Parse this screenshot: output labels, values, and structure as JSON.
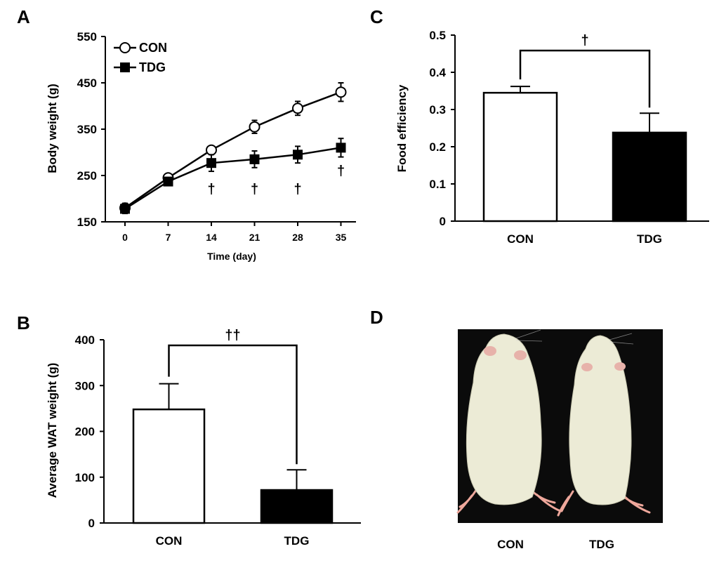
{
  "panels": {
    "A": {
      "letter": "A",
      "chart_data": {
        "type": "line",
        "title": "",
        "xlabel": "Time (day)",
        "ylabel": "Body weight (g)",
        "x": [
          0,
          7,
          14,
          21,
          28,
          35
        ],
        "ylim": [
          150,
          550
        ],
        "yticks": [
          150,
          250,
          350,
          450,
          550
        ],
        "series": [
          {
            "name": "CON",
            "marker": "open-circle",
            "values": [
              180,
              245,
              305,
              355,
              395,
              430
            ],
            "errors": [
              10,
              8,
              8,
              14,
              15,
              20
            ]
          },
          {
            "name": "TDG",
            "marker": "filled-square",
            "values": [
              178,
              237,
              277,
              285,
              295,
              310
            ],
            "errors": [
              10,
              8,
              18,
              18,
              18,
              20
            ]
          }
        ],
        "significance": [
          {
            "x": 14,
            "label": "†"
          },
          {
            "x": 21,
            "label": "†"
          },
          {
            "x": 28,
            "label": "†"
          },
          {
            "x": 35,
            "label": "†"
          }
        ],
        "legend": "top-left"
      }
    },
    "B": {
      "letter": "B",
      "chart_data": {
        "type": "bar",
        "title": "",
        "xlabel": "",
        "ylabel": "Average WAT weight (g)",
        "categories": [
          "CON",
          "TDG"
        ],
        "values": [
          248,
          72
        ],
        "errors": [
          56,
          44
        ],
        "colors": [
          "#ffffff",
          "#000000"
        ],
        "ylim": [
          0,
          400
        ],
        "yticks": [
          0,
          100,
          200,
          300,
          400
        ],
        "significance": {
          "label": "††"
        }
      }
    },
    "C": {
      "letter": "C",
      "chart_data": {
        "type": "bar",
        "title": "",
        "xlabel": "",
        "ylabel": "Food efficiency",
        "categories": [
          "CON",
          "TDG"
        ],
        "values": [
          0.345,
          0.238
        ],
        "errors": [
          0.017,
          0.052
        ],
        "colors": [
          "#ffffff",
          "#000000"
        ],
        "ylim": [
          0,
          0.5
        ],
        "yticks": [
          "0",
          "0.1",
          "0.2",
          "0.3",
          "0.4",
          "0.5"
        ],
        "significance": {
          "label": "†"
        }
      }
    },
    "D": {
      "letter": "D",
      "photo_labels": [
        "CON",
        "TDG"
      ]
    }
  }
}
